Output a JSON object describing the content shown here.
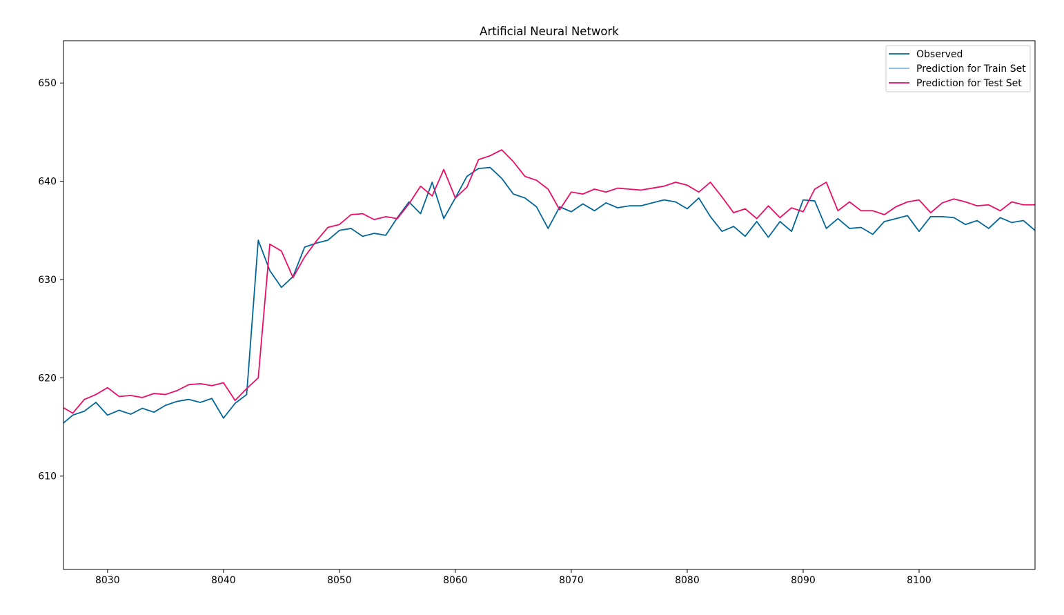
{
  "chart_data": {
    "type": "line",
    "title": "Artificial Neural Network",
    "xlabel": "",
    "ylabel": "",
    "xlim": [
      8026.2,
      8110
    ],
    "ylim": [
      600.5,
      654.3
    ],
    "xticks": [
      8030,
      8040,
      8050,
      8060,
      8070,
      8080,
      8090,
      8100
    ],
    "yticks": [
      610,
      620,
      630,
      640,
      650
    ],
    "grid": false,
    "legend_position": "top-right",
    "x_start": 8026,
    "series": [
      {
        "name": "Observed",
        "color": "#006699",
        "values": [
          615.2,
          616.2,
          616.6,
          617.5,
          616.2,
          616.7,
          616.3,
          616.9,
          616.5,
          617.2,
          617.6,
          617.8,
          617.5,
          617.9,
          615.9,
          617.4,
          618.3,
          634.0,
          630.9,
          629.2,
          630.3,
          633.3,
          633.7,
          634.0,
          635.0,
          635.2,
          634.4,
          634.7,
          634.5,
          636.3,
          637.9,
          636.7,
          639.9,
          636.2,
          638.3,
          640.5,
          641.3,
          641.4,
          640.3,
          638.7,
          638.3,
          637.4,
          635.2,
          637.4,
          636.9,
          637.7,
          637.0,
          637.8,
          637.3,
          637.5,
          637.5,
          637.8,
          638.1,
          637.9,
          637.2,
          638.3,
          636.4,
          634.9,
          635.4,
          634.4,
          635.9,
          634.3,
          635.9,
          634.9,
          638.1,
          638.0,
          635.2,
          636.2,
          635.2,
          635.3,
          634.6,
          635.9,
          636.2,
          636.5,
          634.9,
          636.4,
          636.4,
          636.3,
          635.6,
          636.0,
          635.2,
          636.3,
          635.8,
          636.0,
          635.0
        ]
      },
      {
        "name": "Prediction for Train Set",
        "color": "#7eb6da",
        "values": []
      },
      {
        "name": "Prediction for Test Set",
        "color": "#ec0c64",
        "values": [
          617.1,
          616.4,
          617.8,
          618.3,
          619.0,
          618.1,
          618.2,
          618.0,
          618.4,
          618.3,
          618.7,
          619.3,
          619.4,
          619.2,
          619.5,
          617.7,
          618.9,
          620.0,
          633.6,
          632.9,
          630.2,
          632.3,
          633.9,
          635.3,
          635.6,
          636.6,
          636.7,
          636.1,
          636.4,
          636.2,
          637.7,
          639.5,
          638.5,
          641.2,
          638.3,
          639.4,
          642.2,
          642.6,
          643.2,
          642.0,
          640.5,
          640.1,
          639.2,
          637.1,
          638.9,
          638.7,
          639.2,
          638.9,
          639.3,
          639.2,
          639.1,
          639.3,
          639.5,
          639.9,
          639.6,
          638.9,
          639.9,
          638.4,
          636.8,
          637.2,
          636.2,
          637.5,
          636.3,
          637.3,
          636.9,
          639.2,
          639.9,
          637.0,
          637.9,
          637.0,
          637.0,
          636.6,
          637.4,
          637.9,
          638.1,
          636.8,
          637.8,
          638.2,
          637.9,
          637.5,
          637.6,
          637.0,
          637.9,
          637.6,
          637.6
        ]
      }
    ]
  }
}
